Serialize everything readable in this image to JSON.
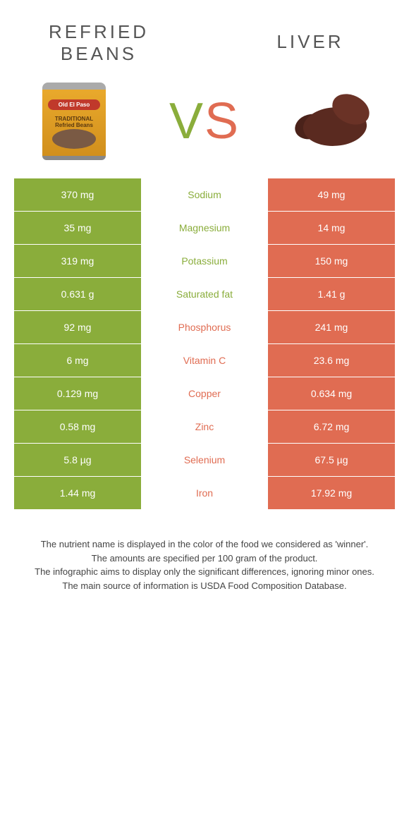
{
  "colors": {
    "left": "#8aad3b",
    "right": "#e06c52",
    "background": "#ffffff",
    "heading": "#555555",
    "footer": "#444444"
  },
  "header": {
    "left_title_line1": "REFRIED",
    "left_title_line2": "BEANS",
    "right_title": "LIVER",
    "vs_v": "V",
    "vs_s": "S",
    "left_product_brand": "Old El Paso",
    "left_product_text": "TRADITIONAL Refried Beans"
  },
  "table": {
    "type": "comparison-table",
    "columns": [
      "left_value",
      "nutrient",
      "right_value"
    ],
    "rows": [
      {
        "left": "370 mg",
        "label": "Sodium",
        "right": "49 mg",
        "winner": "left"
      },
      {
        "left": "35 mg",
        "label": "Magnesium",
        "right": "14 mg",
        "winner": "left"
      },
      {
        "left": "319 mg",
        "label": "Potassium",
        "right": "150 mg",
        "winner": "left"
      },
      {
        "left": "0.631 g",
        "label": "Saturated fat",
        "right": "1.41 g",
        "winner": "left"
      },
      {
        "left": "92 mg",
        "label": "Phosphorus",
        "right": "241 mg",
        "winner": "right"
      },
      {
        "left": "6 mg",
        "label": "Vitamin C",
        "right": "23.6 mg",
        "winner": "right"
      },
      {
        "left": "0.129 mg",
        "label": "Copper",
        "right": "0.634 mg",
        "winner": "right"
      },
      {
        "left": "0.58 mg",
        "label": "Zinc",
        "right": "6.72 mg",
        "winner": "right"
      },
      {
        "left": "5.8 µg",
        "label": "Selenium",
        "right": "67.5 µg",
        "winner": "right"
      },
      {
        "left": "1.44 mg",
        "label": "Iron",
        "right": "17.92 mg",
        "winner": "right"
      }
    ]
  },
  "footer": {
    "line1": "The nutrient name is displayed in the color of the food we considered as 'winner'.",
    "line2": "The amounts are specified per 100 gram of the product.",
    "line3": "The infographic aims to display only the significant differences, ignoring minor ones.",
    "line4": "The main source of information is USDA Food Composition Database."
  }
}
